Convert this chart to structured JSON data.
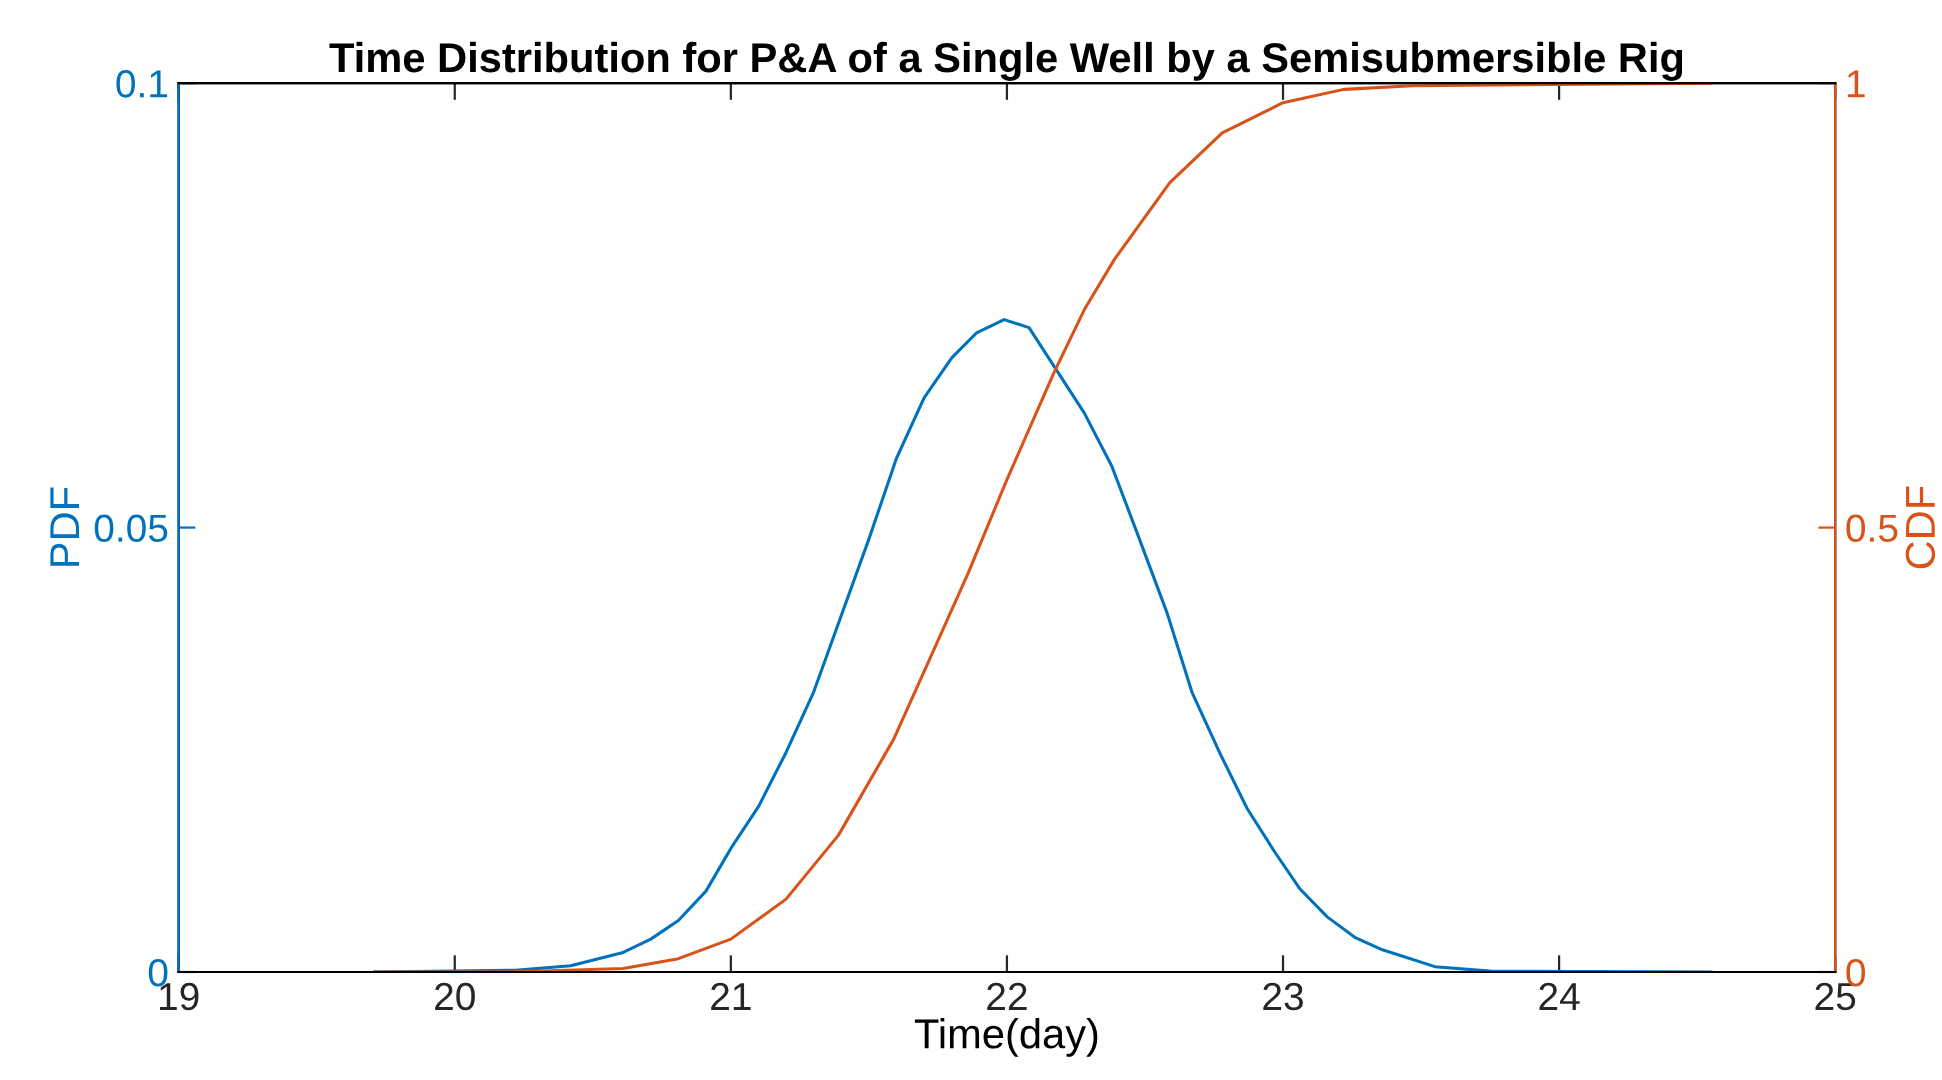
{
  "chart_data": {
    "type": "line",
    "title": "Time Distribution for P&A of a Single Well by a Semisubmersible Rig",
    "xlabel": "Time(day)",
    "ylabel": "PDF",
    "y2label": "CDF",
    "xlim": [
      19,
      25
    ],
    "xticks": [
      19,
      20,
      21,
      22,
      23,
      24,
      25
    ],
    "ylim": [
      0,
      0.1
    ],
    "yticks": [
      0,
      0.05,
      0.1
    ],
    "y2lim": [
      0,
      1
    ],
    "y2ticks": [
      0,
      0.5,
      1
    ],
    "grid": false,
    "legend": false,
    "series": [
      {
        "color": "#0072bd",
        "x": [
          19.71,
          20.22,
          20.42,
          20.61,
          20.71,
          20.81,
          20.91,
          21.0,
          21.1,
          21.2,
          21.3,
          21.4,
          21.5,
          21.6,
          21.7,
          21.8,
          21.89,
          21.99,
          22.08,
          22.28,
          22.38,
          22.48,
          22.58,
          22.67,
          22.77,
          22.87,
          22.97,
          23.06,
          23.16,
          23.26,
          23.36,
          23.55,
          23.75,
          24.55
        ],
        "values": [
          0,
          0.0002,
          0.0007,
          0.0022,
          0.0037,
          0.0058,
          0.0091,
          0.0139,
          0.0186,
          0.0247,
          0.0315,
          0.0401,
          0.0487,
          0.0578,
          0.0646,
          0.0691,
          0.0719,
          0.0734,
          0.0725,
          0.0629,
          0.0569,
          0.0487,
          0.0404,
          0.0315,
          0.0247,
          0.0184,
          0.0135,
          0.0094,
          0.0062,
          0.0039,
          0.0025,
          0.0006,
          0.0001,
          0
        ]
      },
      {
        "color": "#d95319",
        "axis": "y2",
        "x": [
          19.71,
          20.2,
          20.61,
          20.81,
          21.0,
          21.2,
          21.39,
          21.59,
          21.71,
          21.86,
          22.0,
          22.17,
          22.28,
          22.39,
          22.59,
          22.78,
          23.0,
          23.22,
          23.47,
          24.55
        ],
        "values": [
          0,
          0,
          0.004,
          0.015,
          0.037,
          0.082,
          0.154,
          0.262,
          0.345,
          0.449,
          0.554,
          0.674,
          0.745,
          0.802,
          0.888,
          0.944,
          0.978,
          0.993,
          0.997,
          1.0
        ]
      }
    ]
  }
}
